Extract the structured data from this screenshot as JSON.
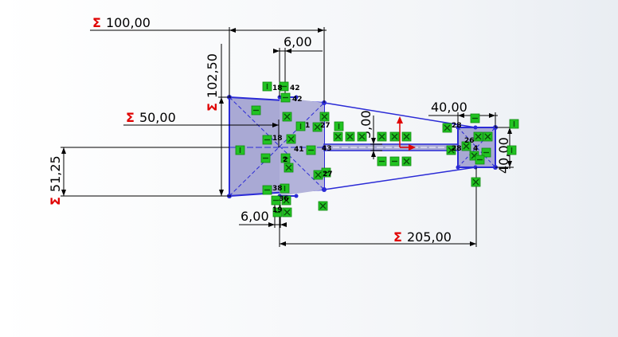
{
  "sketch": {
    "dimensions": {
      "overall_width": {
        "prefix": "Σ",
        "value": "100,00"
      },
      "overall_height": {
        "prefix": "Σ",
        "value": "102,50"
      },
      "mid_width": {
        "prefix": "Σ",
        "value": "50,00"
      },
      "lower_height": {
        "prefix": "Σ",
        "value": "51,25"
      },
      "top_offset": {
        "value": "6,00"
      },
      "bottom_offset": {
        "value": "6,00"
      },
      "slot_height": {
        "value": "5,00"
      },
      "right_width": {
        "value": "40,00"
      },
      "right_height": {
        "value": "40,00"
      },
      "total_length": {
        "prefix": "Σ",
        "value": "205,00"
      }
    },
    "relation_labels": [
      "18",
      "42",
      "42",
      "1",
      "27",
      "18",
      "41",
      "2",
      "43",
      "27",
      "38",
      "36",
      "19",
      "28",
      "26",
      "28",
      "4"
    ],
    "colors": {
      "sketch_line": "#2b2bd6",
      "sketch_fill": "#a9a9d4",
      "relation_icon": "#22c322",
      "sigma": "#e00000",
      "origin": "#e00000"
    }
  }
}
